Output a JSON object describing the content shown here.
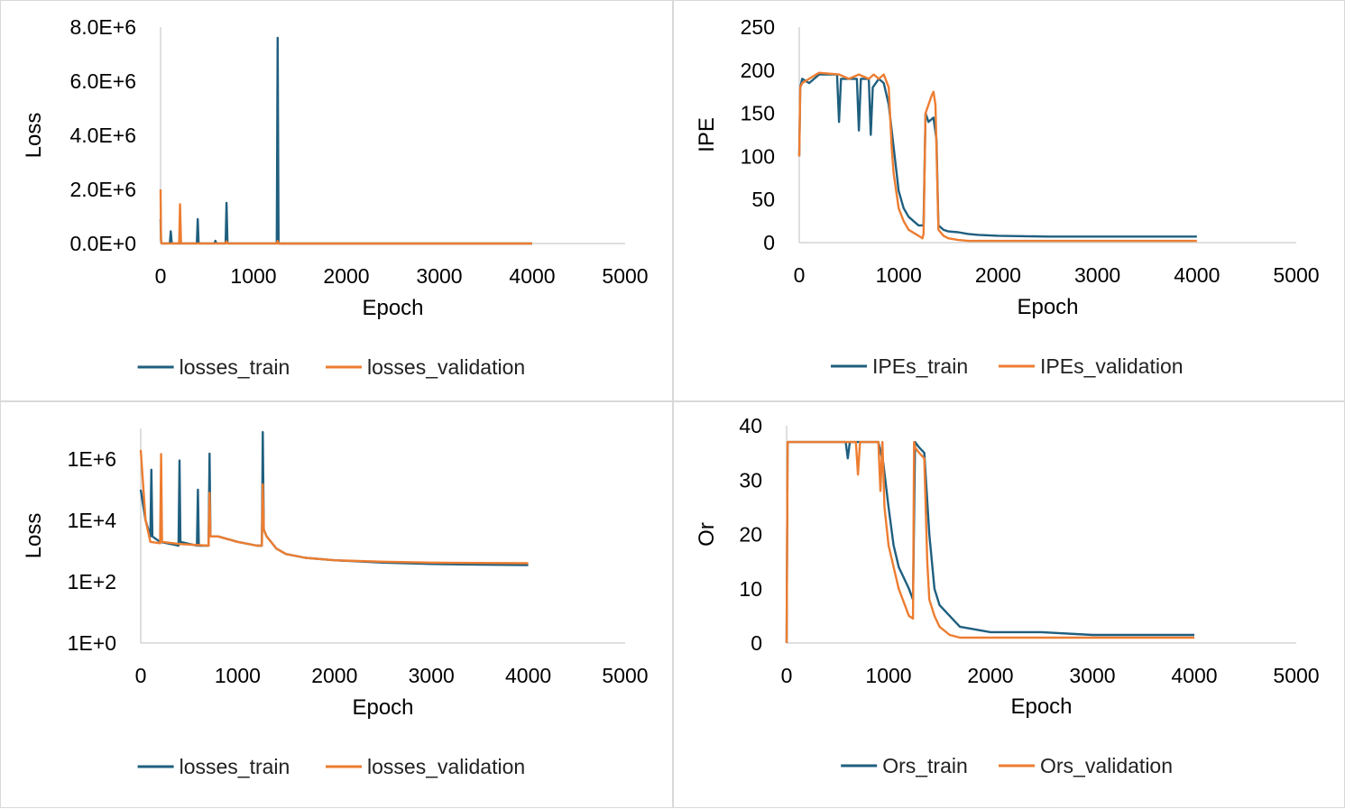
{
  "colors": {
    "train": "#1f5f7f",
    "validation": "#ed7d31",
    "axis": "#bfbfbf"
  },
  "chart_data": [
    {
      "type": "line",
      "title": "",
      "xlabel": "Epoch",
      "ylabel": "Loss",
      "xlim": [
        0,
        5000
      ],
      "ylim": [
        0,
        8000000
      ],
      "yscale": "linear",
      "xticks": [
        "0",
        "1000",
        "2000",
        "3000",
        "4000",
        "5000"
      ],
      "yticks": [
        "0.0E+0",
        "2.0E+6",
        "4.0E+6",
        "6.0E+6",
        "8.0E+6"
      ],
      "grid": false,
      "legend_position": "bottom",
      "series": [
        {
          "name": "losses_train",
          "x": [
            0,
            5,
            10,
            100,
            110,
            120,
            390,
            400,
            410,
            580,
            590,
            600,
            700,
            710,
            720,
            1250,
            1260,
            1270,
            1500,
            2000,
            3000,
            4000
          ],
          "y": [
            900000,
            100000,
            2000,
            2000,
            450000,
            2000,
            2000,
            900000,
            2000,
            2000,
            100000,
            2000,
            2000,
            1500000,
            2000,
            2000,
            7600000,
            1000,
            800,
            500,
            400,
            400
          ]
        },
        {
          "name": "losses_validation",
          "x": [
            0,
            5,
            10,
            200,
            210,
            220,
            700,
            710,
            720,
            1250,
            1260,
            1270,
            2000,
            3000,
            4000
          ],
          "y": [
            2000000,
            150000,
            2000,
            2000,
            1450000,
            2000,
            2000,
            80000,
            2000,
            2000,
            90000,
            1000,
            500,
            450,
            450
          ]
        }
      ]
    },
    {
      "type": "line",
      "title": "",
      "xlabel": "Epoch",
      "ylabel": "IPE",
      "xlim": [
        0,
        5000
      ],
      "ylim": [
        0,
        250
      ],
      "yscale": "linear",
      "xticks": [
        "0",
        "1000",
        "2000",
        "3000",
        "4000",
        "5000"
      ],
      "yticks": [
        "0",
        "50",
        "100",
        "150",
        "200",
        "250"
      ],
      "grid": false,
      "legend_position": "bottom",
      "series": [
        {
          "name": "IPEs_train",
          "x": [
            0,
            10,
            30,
            100,
            200,
            380,
            400,
            420,
            580,
            600,
            620,
            700,
            720,
            740,
            800,
            850,
            900,
            950,
            1000,
            1050,
            1100,
            1200,
            1250,
            1270,
            1300,
            1350,
            1380,
            1400,
            1450,
            1500,
            1600,
            1700,
            1800,
            2000,
            2500,
            3000,
            3500,
            4000
          ],
          "y": [
            100,
            180,
            190,
            185,
            195,
            195,
            140,
            190,
            190,
            130,
            190,
            190,
            125,
            180,
            190,
            185,
            160,
            110,
            60,
            40,
            30,
            20,
            20,
            150,
            140,
            145,
            120,
            20,
            15,
            13,
            12,
            10,
            9,
            8,
            7,
            7,
            7,
            7
          ]
        },
        {
          "name": "IPEs_validation",
          "x": [
            0,
            10,
            30,
            100,
            200,
            400,
            500,
            600,
            700,
            750,
            800,
            850,
            900,
            930,
            950,
            1000,
            1050,
            1100,
            1200,
            1240,
            1250,
            1270,
            1300,
            1330,
            1350,
            1370,
            1400,
            1450,
            1500,
            1600,
            1700,
            2000,
            3000,
            4000
          ],
          "y": [
            100,
            180,
            185,
            190,
            197,
            195,
            190,
            195,
            190,
            195,
            190,
            195,
            180,
            110,
            80,
            40,
            25,
            15,
            8,
            5,
            10,
            150,
            160,
            170,
            175,
            160,
            15,
            8,
            5,
            3,
            2,
            2,
            2,
            2
          ]
        }
      ]
    },
    {
      "type": "line",
      "title": "",
      "xlabel": "Epoch",
      "ylabel": "Loss",
      "xlim": [
        0,
        5000
      ],
      "ylim": [
        1,
        10000000
      ],
      "yscale": "log",
      "xticks": [
        "0",
        "1000",
        "2000",
        "3000",
        "4000",
        "5000"
      ],
      "yticks": [
        "1E+0",
        "1E+2",
        "1E+4",
        "1E+6"
      ],
      "grid": false,
      "legend_position": "bottom",
      "series": [
        {
          "name": "losses_train",
          "x": [
            0,
            50,
            100,
            110,
            120,
            200,
            390,
            400,
            410,
            580,
            590,
            600,
            700,
            710,
            720,
            800,
            1000,
            1200,
            1250,
            1260,
            1270,
            1300,
            1400,
            1500,
            1700,
            2000,
            2500,
            3000,
            3500,
            4000
          ],
          "y": [
            100000,
            10000,
            3000,
            450000,
            3000,
            2000,
            1500,
            900000,
            2000,
            1500,
            100000,
            1500,
            1500,
            1500000,
            3000,
            3000,
            2000,
            1500,
            1500,
            7600000,
            5000,
            3000,
            1200,
            800,
            600,
            500,
            420,
            380,
            360,
            350
          ]
        },
        {
          "name": "losses_validation",
          "x": [
            0,
            50,
            100,
            200,
            210,
            220,
            400,
            700,
            710,
            720,
            800,
            1000,
            1200,
            1250,
            1260,
            1270,
            1300,
            1400,
            1500,
            1700,
            2000,
            2500,
            3000,
            3500,
            4000
          ],
          "y": [
            2000000,
            10000,
            2000,
            1800,
            1450000,
            2000,
            1700,
            1500,
            80000,
            3000,
            3000,
            2000,
            1500,
            1500,
            150000,
            5000,
            3000,
            1200,
            800,
            600,
            500,
            450,
            420,
            410,
            400
          ]
        }
      ]
    },
    {
      "type": "line",
      "title": "",
      "xlabel": "Epoch",
      "ylabel": "Or",
      "xlim": [
        0,
        5000
      ],
      "ylim": [
        0,
        40
      ],
      "yscale": "linear",
      "xticks": [
        "0",
        "1000",
        "2000",
        "3000",
        "4000",
        "5000"
      ],
      "yticks": [
        "0",
        "10",
        "20",
        "30",
        "40"
      ],
      "grid": false,
      "legend_position": "bottom",
      "series": [
        {
          "name": "Ors_train",
          "x": [
            0,
            10,
            580,
            600,
            620,
            900,
            950,
            1000,
            1050,
            1100,
            1200,
            1240,
            1260,
            1300,
            1350,
            1400,
            1450,
            1500,
            1600,
            1700,
            2000,
            2500,
            3000,
            3500,
            4000
          ],
          "y": [
            0,
            37,
            37,
            34,
            37,
            37,
            33,
            25,
            18,
            14,
            10,
            8,
            37,
            36,
            35,
            20,
            10,
            7,
            5,
            3,
            2,
            2,
            1.5,
            1.5,
            1.5
          ]
        },
        {
          "name": "Ors_validation",
          "x": [
            0,
            10,
            680,
            700,
            720,
            900,
            920,
            940,
            960,
            1000,
            1050,
            1100,
            1200,
            1240,
            1250,
            1260,
            1300,
            1350,
            1380,
            1400,
            1450,
            1500,
            1600,
            1700,
            2000,
            2500,
            3000,
            3500,
            4000
          ],
          "y": [
            0,
            37,
            37,
            31,
            37,
            37,
            28,
            37,
            25,
            18,
            14,
            10,
            5,
            4.5,
            37,
            36,
            35,
            34,
            15,
            8,
            5,
            3,
            1.5,
            1,
            1,
            1,
            1,
            1,
            1
          ]
        }
      ]
    }
  ]
}
